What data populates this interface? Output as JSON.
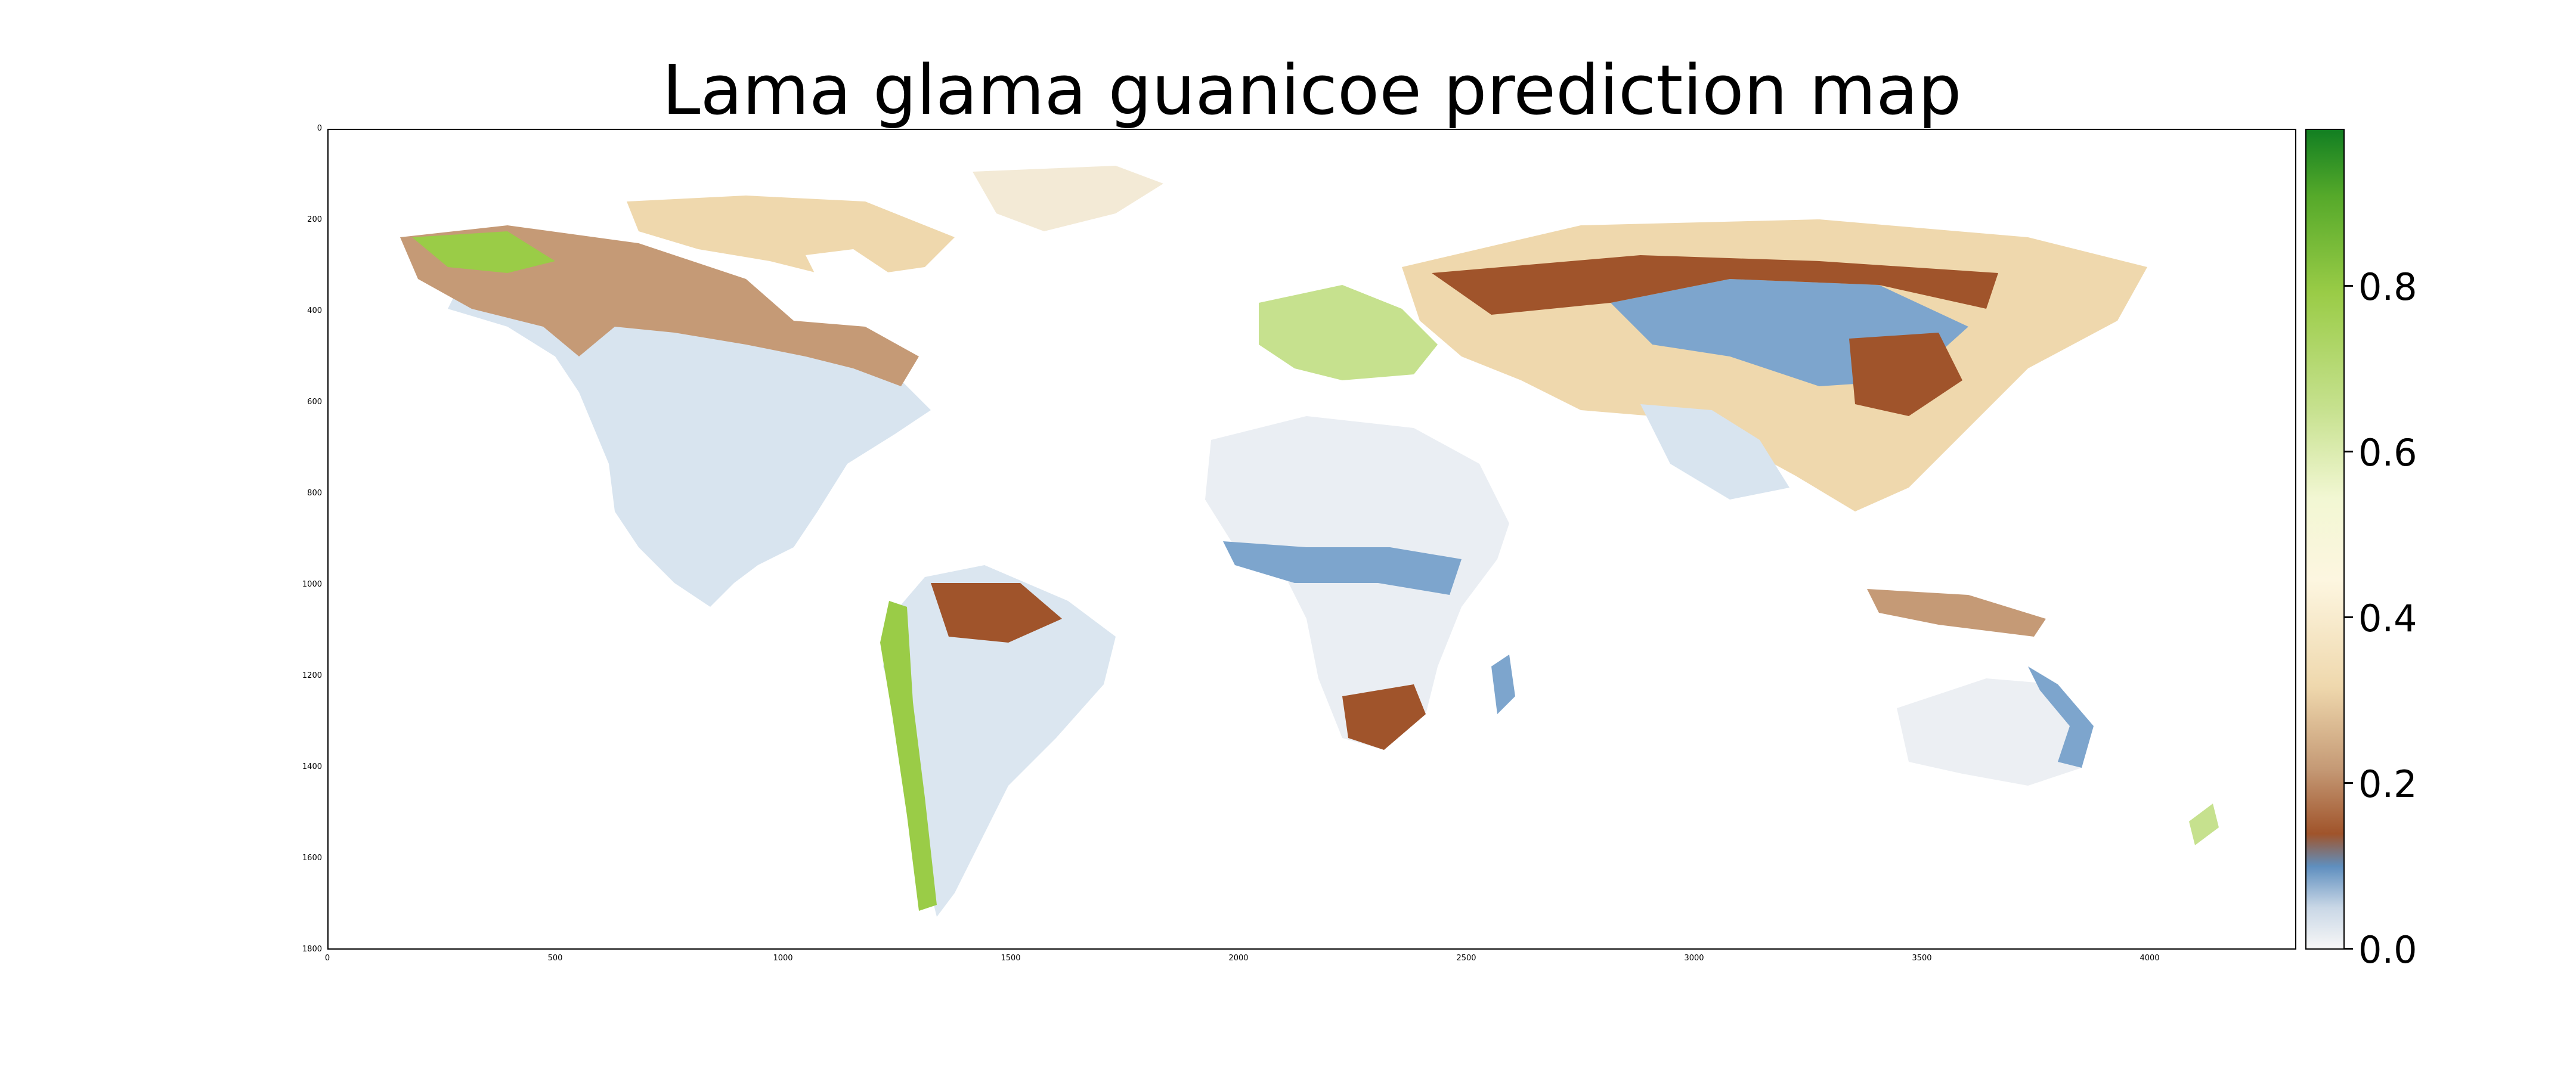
{
  "title": "Lama glama guanicoe prediction map",
  "map": {
    "y_ticks": [
      "0",
      "200",
      "400",
      "600",
      "800",
      "1000",
      "1200",
      "1400",
      "1600",
      "1800"
    ],
    "x_ticks": [
      "0",
      "500",
      "1000",
      "1500",
      "2000",
      "2500",
      "3000",
      "3500",
      "4000"
    ],
    "xlim": [
      0,
      4320
    ],
    "ylim": [
      1800,
      0
    ]
  },
  "colorbar": {
    "ticks": [
      "0.0",
      "0.2",
      "0.4",
      "0.6",
      "0.8"
    ],
    "range": [
      0.0,
      0.98
    ],
    "colors": [
      "#f7f7f7",
      "#5f8fbf",
      "#a0542b",
      "#efd8ad",
      "#fdf6e0",
      "#9acc47",
      "#127f22"
    ]
  }
}
